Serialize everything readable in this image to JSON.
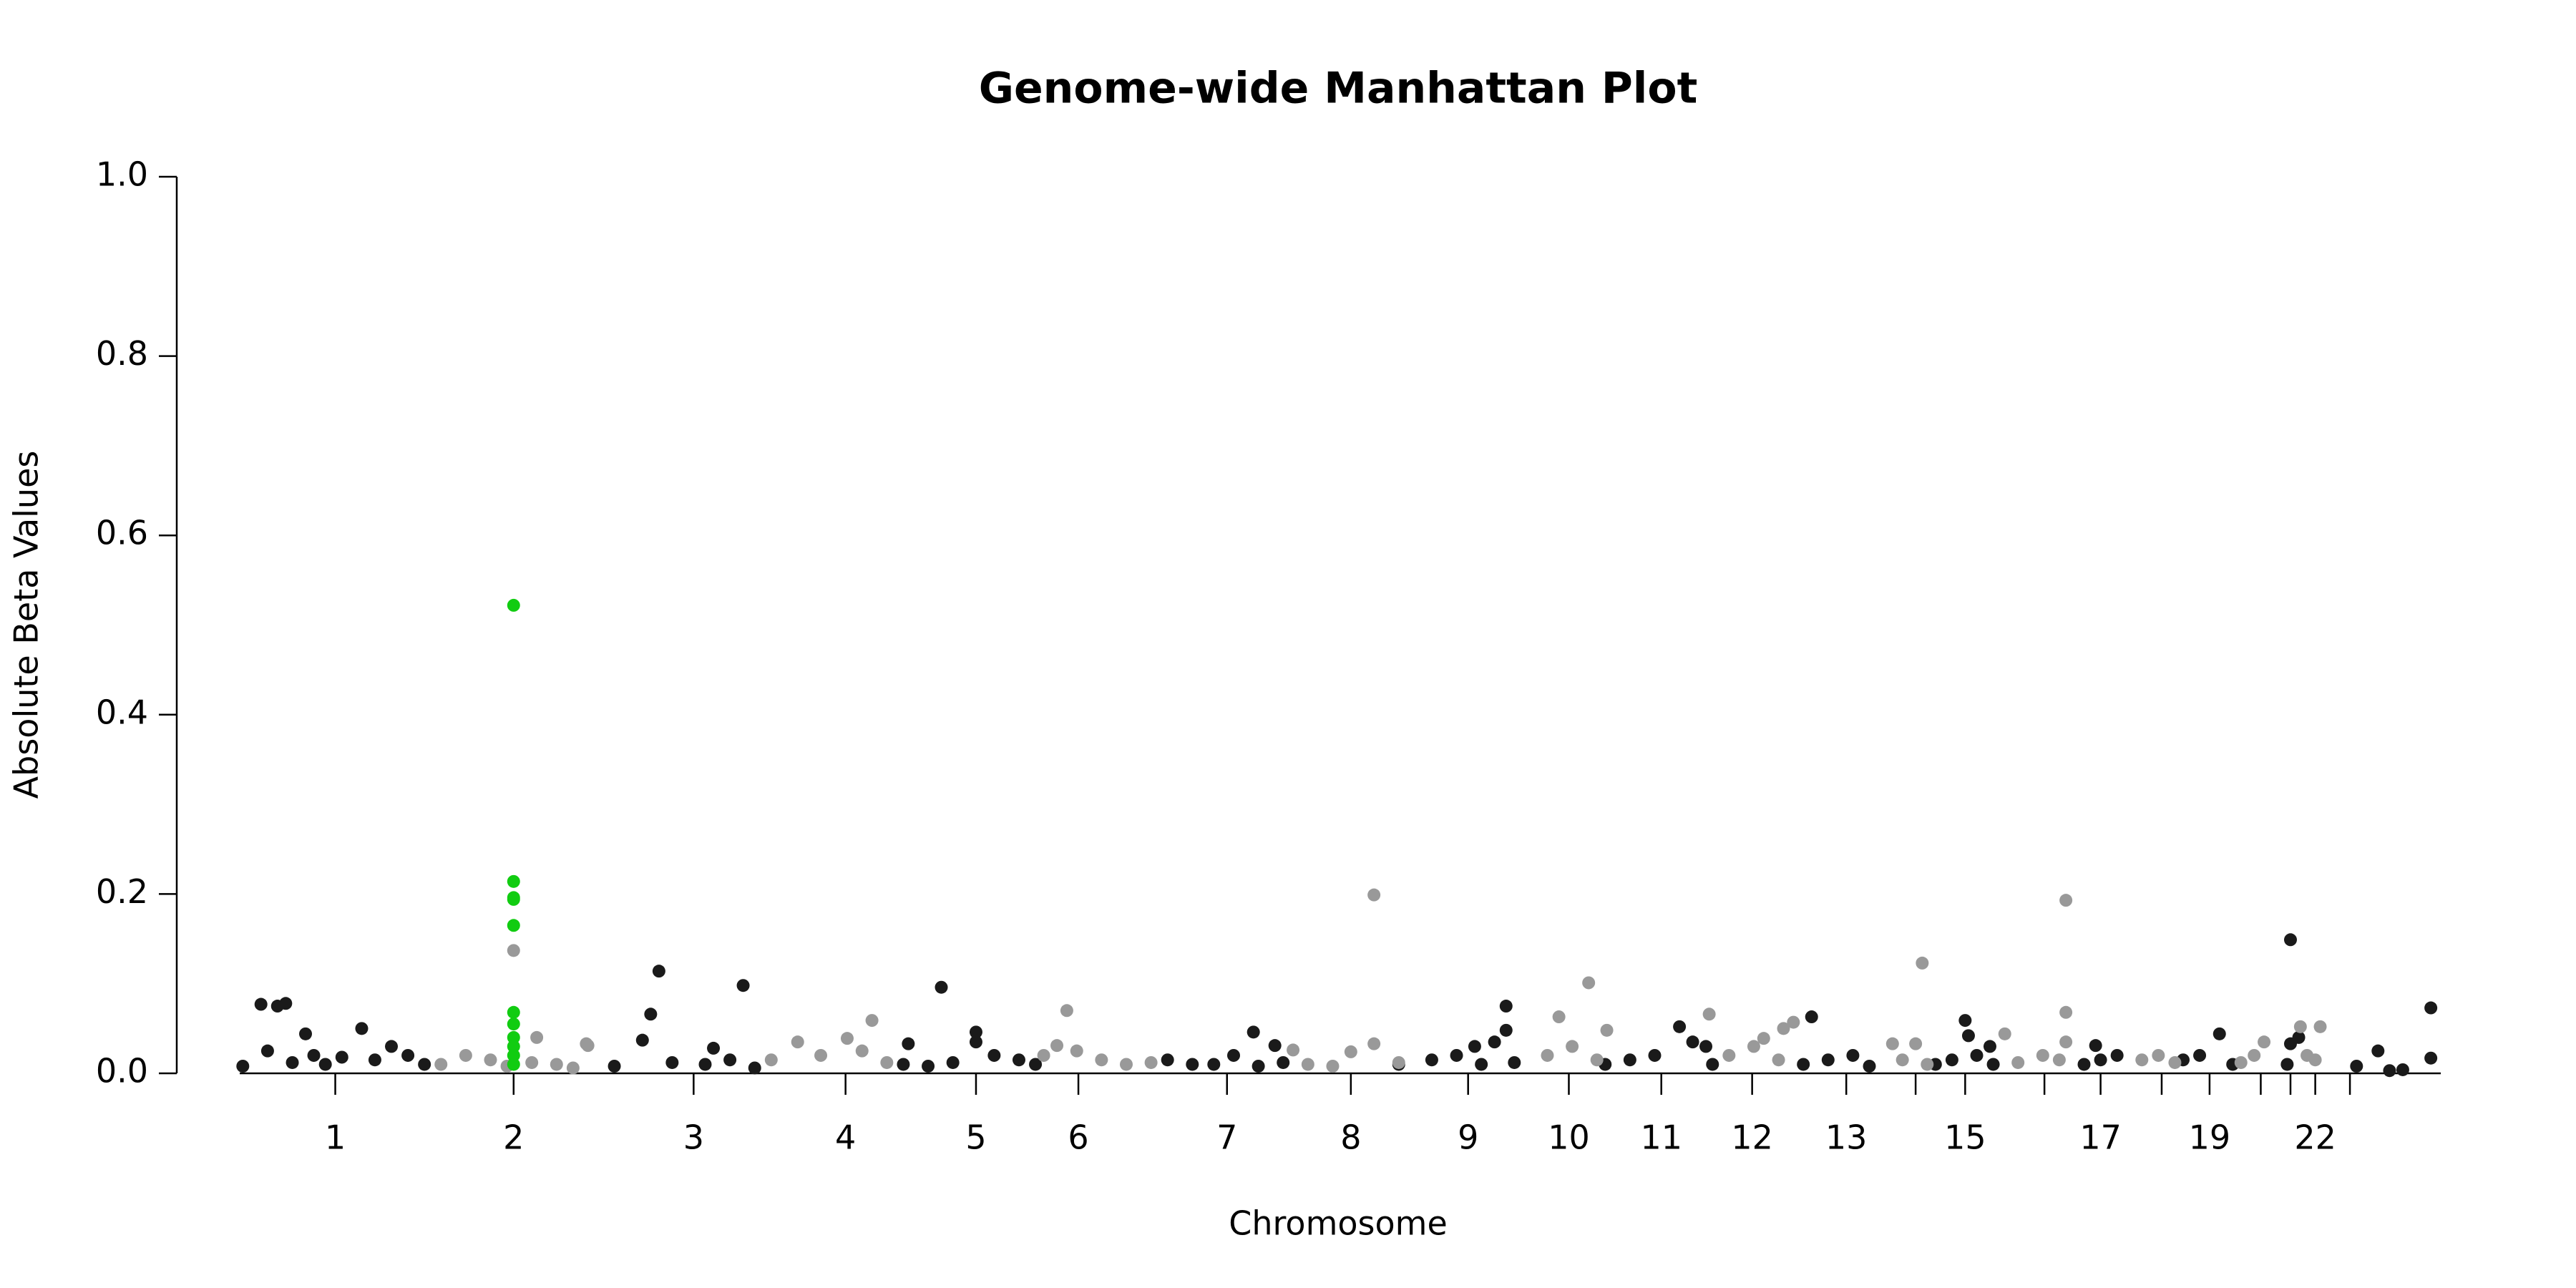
{
  "chart_data": {
    "type": "scatter",
    "title": "Genome-wide Manhattan Plot",
    "x_label": "Chromosome",
    "y_label": "Absolute Beta Values",
    "xlim": [
      0,
      1371
    ],
    "ylim": [
      0,
      1
    ],
    "yticks": [
      {
        "value": 0,
        "label": "0.0"
      },
      {
        "value": 0.2,
        "label": "0.2"
      },
      {
        "value": 0.4,
        "label": "0.4"
      },
      {
        "value": 0.6,
        "label": "0.6"
      },
      {
        "value": 0.8,
        "label": "0.8"
      },
      {
        "value": 1,
        "label": "1.0"
      }
    ],
    "xticks": [
      {
        "value": 96,
        "label": "1"
      },
      {
        "value": 204,
        "label": "2"
      },
      {
        "value": 313,
        "label": "3"
      },
      {
        "value": 405,
        "label": "4"
      },
      {
        "value": 484,
        "label": "5"
      },
      {
        "value": 546,
        "label": "6"
      },
      {
        "value": 636,
        "label": "7"
      },
      {
        "value": 711,
        "label": "8"
      },
      {
        "value": 782,
        "label": "9"
      },
      {
        "value": 843,
        "label": "10"
      },
      {
        "value": 899,
        "label": "11"
      },
      {
        "value": 954,
        "label": "12"
      },
      {
        "value": 1011,
        "label": "13"
      },
      {
        "value": 1053,
        "label": null
      },
      {
        "value": 1083,
        "label": "15"
      },
      {
        "value": 1131,
        "label": null
      },
      {
        "value": 1165,
        "label": "17"
      },
      {
        "value": 1202,
        "label": null
      },
      {
        "value": 1231,
        "label": "19"
      },
      {
        "value": 1262,
        "label": null
      },
      {
        "value": 1280,
        "label": null
      },
      {
        "value": 1295,
        "label": "22"
      },
      {
        "value": 1316,
        "label": null
      }
    ],
    "series": [
      {
        "color": "#1a1a1a",
        "x": [
          51,
          61,
          66,
          78,
          112,
          83,
          40,
          55,
          70,
          90,
          100,
          120,
          130,
          140,
          150,
          292,
          287,
          343,
          282,
          325,
          265,
          300,
          320,
          335,
          350,
          463,
          484,
          443,
          484,
          440,
          455,
          470,
          495,
          510,
          520,
          652,
          665,
          628,
          600,
          615,
          640,
          655,
          670,
          805,
          805,
          798,
          786,
          740,
          760,
          775,
          790,
          810,
          910,
          918,
          926,
          865,
          880,
          895,
          930,
          990,
          985,
          1000,
          1015,
          1025,
          1083,
          1085,
          1098,
          1065,
          1075,
          1090,
          1100,
          1162,
          1155,
          1165,
          1175,
          1237,
          1215,
          1225,
          1245,
          1280,
          1285,
          1280,
          1278,
          1365,
          1365,
          1333,
          1348,
          1320,
          1340
        ],
        "values": [
          0.077,
          0.075,
          0.078,
          0.044,
          0.05,
          0.02,
          0.008,
          0.025,
          0.012,
          0.01,
          0.018,
          0.015,
          0.03,
          0.02,
          0.01,
          0.114,
          0.066,
          0.098,
          0.037,
          0.028,
          0.008,
          0.012,
          0.01,
          0.015,
          0.006,
          0.096,
          0.046,
          0.033,
          0.035,
          0.01,
          0.008,
          0.012,
          0.02,
          0.015,
          0.01,
          0.046,
          0.031,
          0.01,
          0.015,
          0.01,
          0.02,
          0.008,
          0.012,
          0.075,
          0.048,
          0.035,
          0.03,
          0.01,
          0.015,
          0.02,
          0.01,
          0.012,
          0.052,
          0.035,
          0.03,
          0.01,
          0.015,
          0.02,
          0.01,
          0.063,
          0.01,
          0.015,
          0.02,
          0.008,
          0.059,
          0.042,
          0.03,
          0.01,
          0.015,
          0.02,
          0.01,
          0.031,
          0.01,
          0.015,
          0.02,
          0.044,
          0.015,
          0.02,
          0.01,
          0.149,
          0.04,
          0.033,
          0.01,
          0.073,
          0.017,
          0.025,
          0.004,
          0.008,
          0.003
        ]
      },
      {
        "color": "#999999",
        "x": [
          204,
          218,
          249,
          248,
          160,
          175,
          190,
          200,
          215,
          230,
          240,
          376,
          406,
          421,
          360,
          390,
          415,
          430,
          539,
          533,
          525,
          545,
          560,
          575,
          590,
          725,
          676,
          711,
          725,
          685,
          700,
          740,
          855,
          837,
          866,
          830,
          845,
          860,
          928,
          961,
          979,
          973,
          940,
          955,
          970,
          1057,
          1053,
          1039,
          1045,
          1060,
          1144,
          1144,
          1144,
          1107,
          1115,
          1130,
          1140,
          1190,
          1200,
          1210,
          1264,
          1250,
          1258,
          1286,
          1298,
          1290,
          1295
        ],
        "values": [
          0.137,
          0.04,
          0.031,
          0.033,
          0.01,
          0.02,
          0.015,
          0.008,
          0.012,
          0.01,
          0.006,
          0.035,
          0.039,
          0.059,
          0.015,
          0.02,
          0.025,
          0.012,
          0.07,
          0.031,
          0.02,
          0.025,
          0.015,
          0.01,
          0.012,
          0.199,
          0.026,
          0.024,
          0.033,
          0.01,
          0.008,
          0.012,
          0.101,
          0.063,
          0.048,
          0.02,
          0.03,
          0.015,
          0.066,
          0.039,
          0.057,
          0.05,
          0.02,
          0.03,
          0.015,
          0.123,
          0.033,
          0.033,
          0.015,
          0.01,
          0.193,
          0.068,
          0.035,
          0.044,
          0.012,
          0.02,
          0.015,
          0.015,
          0.02,
          0.012,
          0.035,
          0.012,
          0.02,
          0.052,
          0.052,
          0.02,
          0.015
        ]
      },
      {
        "color": "#11cc11",
        "x": [
          204,
          204,
          204,
          204,
          204,
          204,
          204,
          204,
          204,
          204,
          204
        ],
        "values": [
          0.522,
          0.214,
          0.196,
          0.194,
          0.165,
          0.068,
          0.055,
          0.04,
          0.03,
          0.02,
          0.01
        ]
      }
    ]
  }
}
